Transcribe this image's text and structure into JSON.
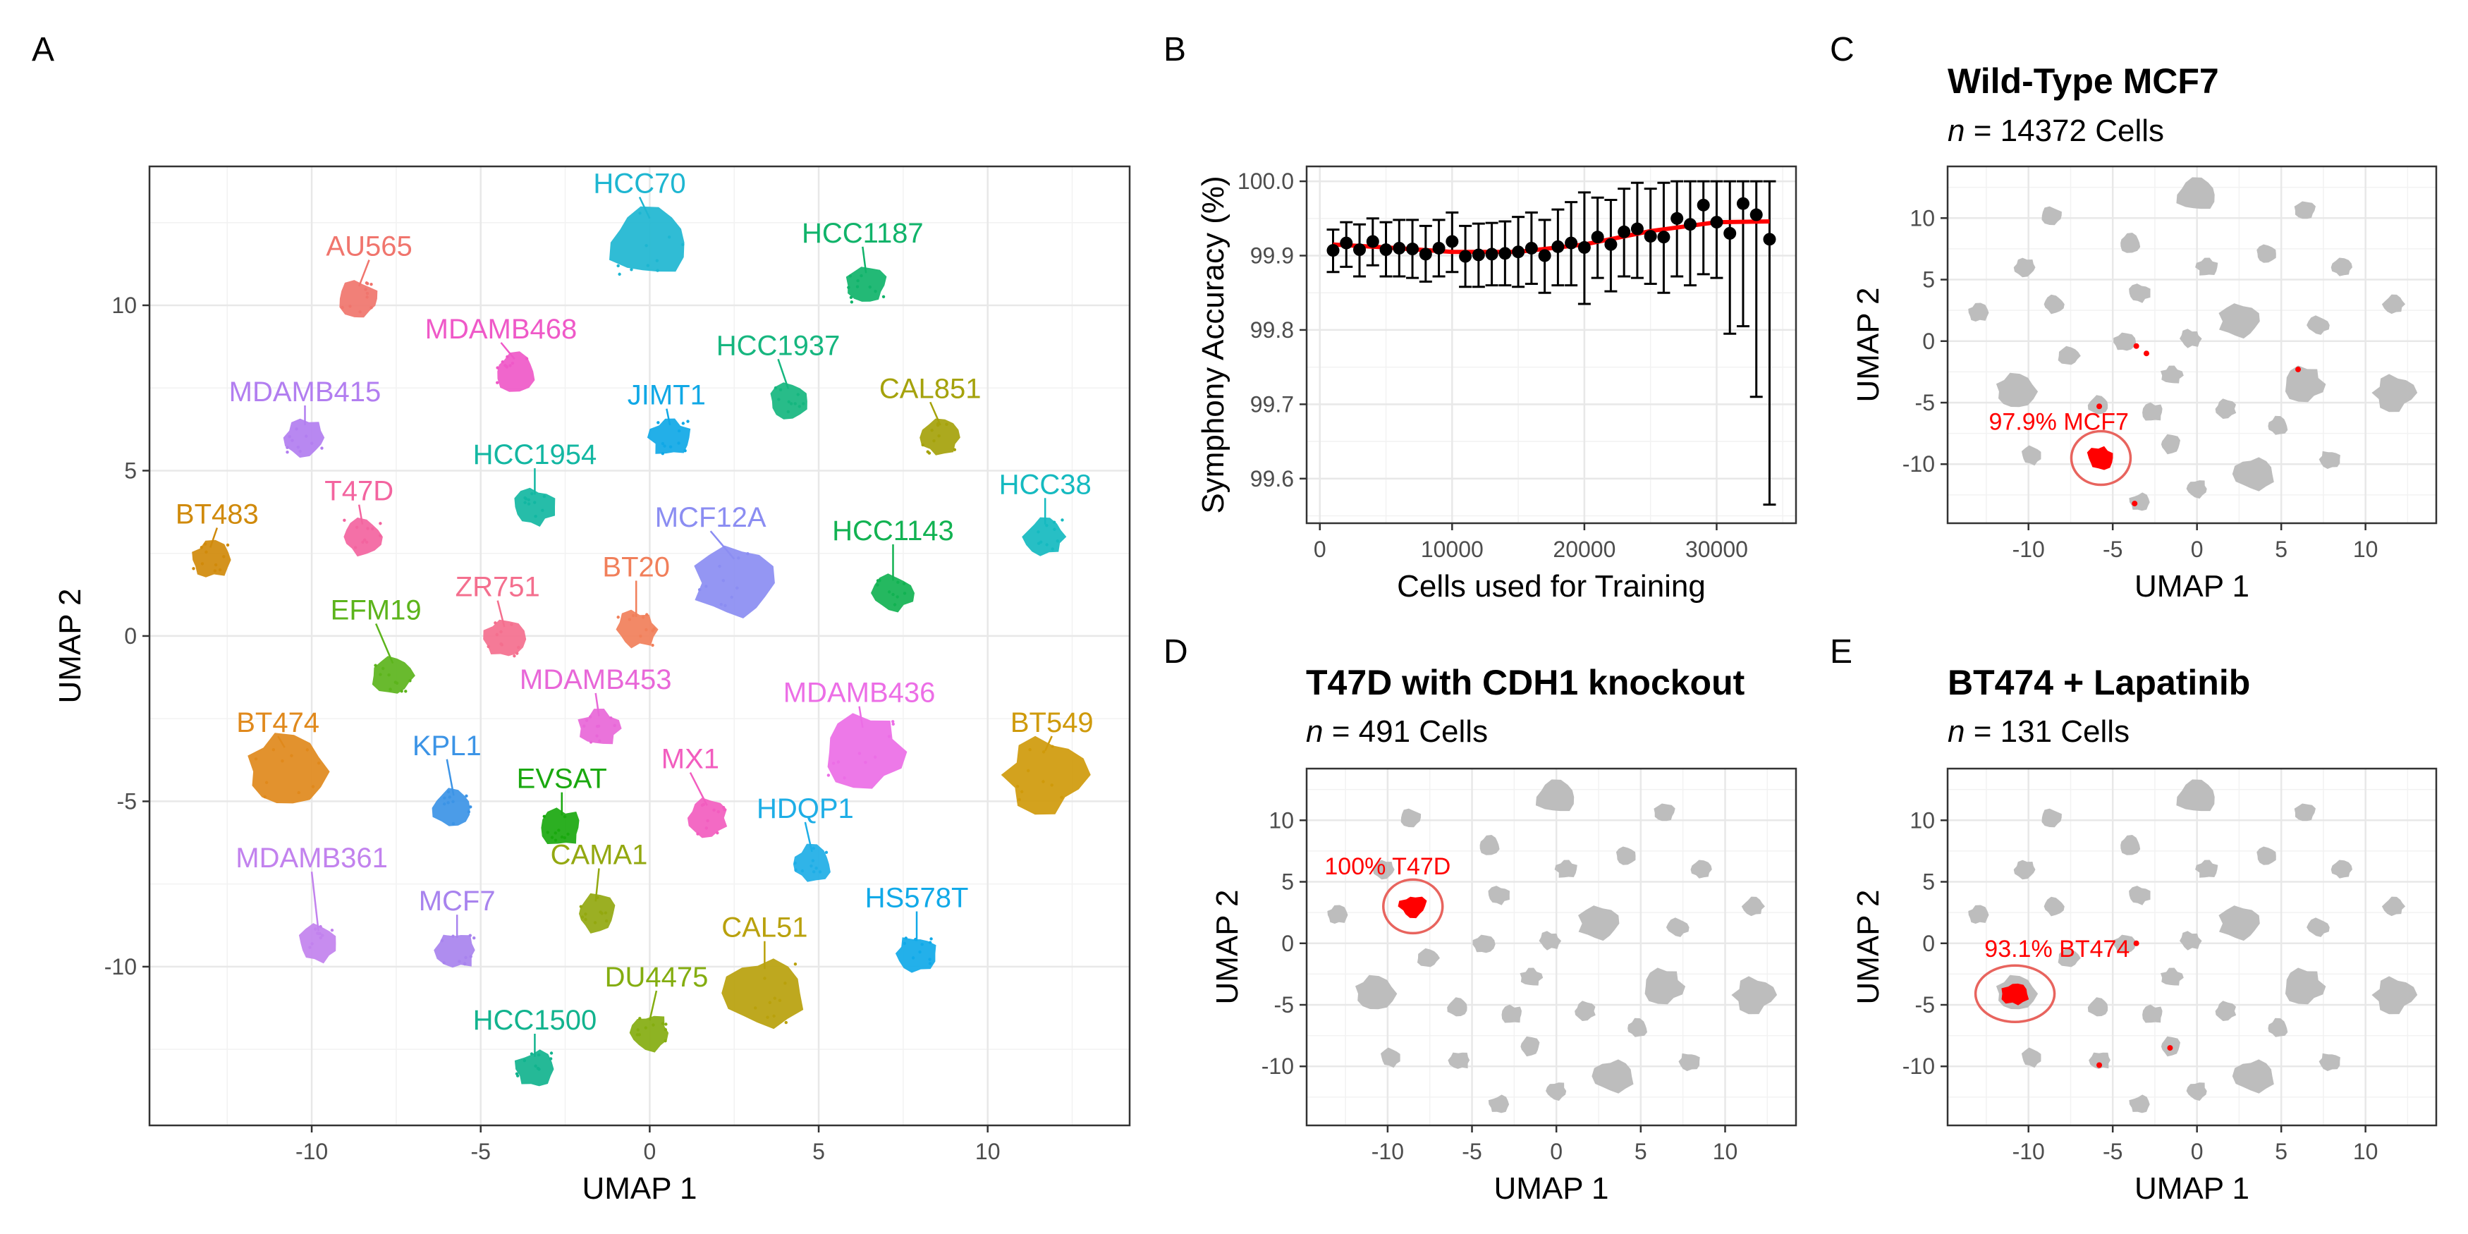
{
  "panel_letters": {
    "a": "A",
    "b": "B",
    "c": "C",
    "d": "D",
    "e": "E"
  },
  "colors": {
    "grid": "#e8e8e8",
    "frame": "#333333",
    "tick_text": "#4d4d4d",
    "highlight": "#ff0000",
    "ring": "#e8645e",
    "gray_cluster": "#bdbdbd",
    "trend": "#ff0000",
    "points": "#000000"
  },
  "chart_data": [
    {
      "id": "A",
      "type": "scatter",
      "title": "",
      "xlabel": "UMAP 1",
      "ylabel": "UMAP 2",
      "xlim": [
        -14.8,
        14.2
      ],
      "ylim": [
        -14.8,
        14.2
      ],
      "xticks": [
        -10,
        -5,
        0,
        5,
        10
      ],
      "xtick_labels": [
        "-10",
        "-5",
        "0",
        "5",
        "10"
      ],
      "yticks": [
        -10,
        -5,
        0,
        5,
        10
      ],
      "ytick_labels": [
        "-10",
        "-5",
        "0",
        "5",
        "10"
      ],
      "grid": true,
      "clusters": [
        {
          "name": "HCC70",
          "x": 0.0,
          "y": 11.9,
          "color": "#1eb6d1",
          "label_x": -0.3,
          "label_y": 13.4
        },
        {
          "name": "AU565",
          "x": -8.6,
          "y": 10.2,
          "color": "#f0756d",
          "label_x": -8.3,
          "label_y": 11.5
        },
        {
          "name": "HCC1187",
          "x": 6.4,
          "y": 10.6,
          "color": "#10b36a",
          "label_x": 6.3,
          "label_y": 11.9
        },
        {
          "name": "MDAMB468",
          "x": -4.0,
          "y": 8.0,
          "color": "#ef59c8",
          "label_x": -4.4,
          "label_y": 9.0
        },
        {
          "name": "HCC1937",
          "x": 4.1,
          "y": 7.1,
          "color": "#16b67f",
          "label_x": 3.8,
          "label_y": 8.5
        },
        {
          "name": "JIMT1",
          "x": 0.6,
          "y": 6.0,
          "color": "#10a8e6",
          "label_x": 0.5,
          "label_y": 7.0
        },
        {
          "name": "MDAMB415",
          "x": -10.2,
          "y": 6.0,
          "color": "#b27ef0",
          "label_x": -10.2,
          "label_y": 7.1
        },
        {
          "name": "CAL851",
          "x": 8.6,
          "y": 6.0,
          "color": "#a5a20b",
          "label_x": 8.3,
          "label_y": 7.2
        },
        {
          "name": "HCC1954",
          "x": -3.4,
          "y": 3.9,
          "color": "#13b7a2",
          "label_x": -3.4,
          "label_y": 5.2
        },
        {
          "name": "T47D",
          "x": -8.5,
          "y": 3.0,
          "color": "#f3649f",
          "label_x": -8.6,
          "label_y": 4.1
        },
        {
          "name": "BT483",
          "x": -13.0,
          "y": 2.3,
          "color": "#d08a0b",
          "label_x": -12.8,
          "label_y": 3.4
        },
        {
          "name": "MCF12A",
          "x": 2.5,
          "y": 1.6,
          "color": "#8b8df2",
          "label_x": 1.8,
          "label_y": 3.3
        },
        {
          "name": "HCC38",
          "x": 11.7,
          "y": 3.0,
          "color": "#15bac0",
          "label_x": 11.7,
          "label_y": 4.3
        },
        {
          "name": "HCC1143",
          "x": 7.2,
          "y": 1.3,
          "color": "#12b252",
          "label_x": 7.2,
          "label_y": 2.9
        },
        {
          "name": "ZR751",
          "x": -4.3,
          "y": -0.1,
          "color": "#f46f8e",
          "label_x": -4.5,
          "label_y": 1.2
        },
        {
          "name": "BT20",
          "x": -0.4,
          "y": 0.2,
          "color": "#f17f5a",
          "label_x": -0.4,
          "label_y": 1.8
        },
        {
          "name": "EFM19",
          "x": -7.6,
          "y": -1.2,
          "color": "#5cb41c",
          "label_x": -8.1,
          "label_y": 0.5
        },
        {
          "name": "MDAMB453",
          "x": -1.5,
          "y": -2.8,
          "color": "#e867d8",
          "label_x": -1.6,
          "label_y": -1.6
        },
        {
          "name": "MDAMB436",
          "x": 6.3,
          "y": -3.5,
          "color": "#ec6ee6",
          "label_x": 6.2,
          "label_y": -2.0
        },
        {
          "name": "BT474",
          "x": -10.8,
          "y": -4.1,
          "color": "#e0891c",
          "label_x": -11.0,
          "label_y": -2.9
        },
        {
          "name": "BT549",
          "x": 11.7,
          "y": -4.2,
          "color": "#cf9a0b",
          "label_x": 11.9,
          "label_y": -2.9
        },
        {
          "name": "KPL1",
          "x": -5.8,
          "y": -5.2,
          "color": "#3c94e6",
          "label_x": -6.0,
          "label_y": -3.6
        },
        {
          "name": "EVSAT",
          "x": -2.6,
          "y": -5.8,
          "color": "#1aa80f",
          "label_x": -2.6,
          "label_y": -4.6
        },
        {
          "name": "MX1",
          "x": 1.7,
          "y": -5.5,
          "color": "#f25dbf",
          "label_x": 1.2,
          "label_y": -4.0
        },
        {
          "name": "HDQP1",
          "x": 4.8,
          "y": -6.9,
          "color": "#1eaee6",
          "label_x": 4.6,
          "label_y": -5.5
        },
        {
          "name": "MDAMB361",
          "x": -9.8,
          "y": -9.3,
          "color": "#c282ee",
          "label_x": -10.0,
          "label_y": -7.0
        },
        {
          "name": "CAMA1",
          "x": -1.6,
          "y": -8.4,
          "color": "#93a810",
          "label_x": -1.5,
          "label_y": -6.9
        },
        {
          "name": "MCF7",
          "x": -5.7,
          "y": -9.5,
          "color": "#a883ee",
          "label_x": -5.7,
          "label_y": -8.3
        },
        {
          "name": "CAL51",
          "x": 3.4,
          "y": -10.8,
          "color": "#b9a10c",
          "label_x": 3.4,
          "label_y": -9.1
        },
        {
          "name": "HS578T",
          "x": 7.9,
          "y": -9.6,
          "color": "#10a9e8",
          "label_x": 7.9,
          "label_y": -8.2
        },
        {
          "name": "DU4475",
          "x": 0.0,
          "y": -12.0,
          "color": "#84ad10",
          "label_x": 0.2,
          "label_y": -10.6
        },
        {
          "name": "HCC1500",
          "x": -3.4,
          "y": -13.1,
          "color": "#12b38e",
          "label_x": -3.4,
          "label_y": -11.9
        }
      ]
    },
    {
      "id": "B",
      "type": "scatter",
      "title": "",
      "xlabel": "Cells used for Training",
      "ylabel": "Symphony Accuracy (%)",
      "xlim": [
        -1000,
        36000
      ],
      "ylim": [
        99.54,
        100.02
      ],
      "xticks": [
        0,
        10000,
        20000,
        30000
      ],
      "xtick_labels": [
        "0",
        "10000",
        "20000",
        "30000"
      ],
      "yticks": [
        99.6,
        99.7,
        99.8,
        99.9,
        100.0
      ],
      "ytick_labels": [
        "99.6",
        "99.7",
        "99.8",
        "99.9",
        "100.0"
      ],
      "grid": true,
      "x": [
        1000,
        2000,
        3000,
        4000,
        5000,
        6000,
        7000,
        8000,
        9000,
        10000,
        11000,
        12000,
        13000,
        14000,
        15000,
        16000,
        17000,
        18000,
        19000,
        20000,
        21000,
        22000,
        23000,
        24000,
        25000,
        26000,
        27000,
        28000,
        29000,
        30000,
        31000,
        32000,
        33000,
        34000
      ],
      "y": [
        99.907,
        99.917,
        99.908,
        99.919,
        99.908,
        99.91,
        99.909,
        99.902,
        99.91,
        99.919,
        99.899,
        99.901,
        99.902,
        99.903,
        99.905,
        99.91,
        99.9,
        99.912,
        99.917,
        99.911,
        99.925,
        99.915,
        99.932,
        99.936,
        99.926,
        99.925,
        99.95,
        99.942,
        99.968,
        99.945,
        99.93,
        99.97,
        99.955,
        99.922
      ],
      "err_low": [
        99.878,
        99.885,
        99.872,
        99.887,
        99.872,
        99.872,
        99.87,
        99.865,
        99.872,
        99.878,
        99.858,
        99.858,
        99.86,
        99.86,
        99.858,
        99.862,
        99.85,
        99.86,
        99.86,
        99.835,
        99.87,
        99.852,
        99.872,
        99.87,
        99.862,
        99.85,
        99.872,
        99.86,
        99.875,
        99.87,
        99.795,
        99.805,
        99.71,
        99.565
      ],
      "err_high": [
        99.935,
        99.945,
        99.942,
        99.95,
        99.945,
        99.948,
        99.948,
        99.94,
        99.948,
        99.958,
        99.94,
        99.943,
        99.944,
        99.946,
        99.952,
        99.958,
        99.948,
        99.962,
        99.972,
        99.985,
        99.978,
        99.975,
        99.99,
        99.998,
        99.99,
        99.998,
        100.0,
        100.0,
        100.0,
        100.0,
        100.0,
        100.0,
        100.0,
        100.0
      ],
      "trend": [
        [
          1000,
          99.915
        ],
        [
          5000,
          99.911
        ],
        [
          10000,
          99.905
        ],
        [
          15000,
          99.905
        ],
        [
          20000,
          99.915
        ],
        [
          25000,
          99.933
        ],
        [
          30000,
          99.945
        ],
        [
          34000,
          99.946
        ]
      ]
    },
    {
      "id": "C",
      "type": "scatter",
      "title": "Wild-Type MCF7",
      "subtitle_italic": "n",
      "subtitle_rest": "= 14372 Cells",
      "xlabel": "UMAP 1",
      "ylabel": "UMAP 2",
      "xlim": [
        -14.8,
        14.2
      ],
      "ylim": [
        -14.8,
        14.2
      ],
      "xticks": [
        -10,
        -5,
        0,
        5,
        10
      ],
      "xtick_labels": [
        "-10",
        "-5",
        "0",
        "5",
        "10"
      ],
      "yticks": [
        -10,
        -5,
        0,
        5,
        10
      ],
      "ytick_labels": [
        "-10",
        "-5",
        "0",
        "5",
        "10"
      ],
      "grid": true,
      "highlight": {
        "label": "97.9% MCF7",
        "x": -5.7,
        "y": -9.5,
        "label_x": -8.2,
        "label_y": -7.2
      },
      "minor_red": [
        [
          -5.8,
          -5.3
        ],
        [
          -3.6,
          -0.4
        ],
        [
          -3.0,
          -1.0
        ],
        [
          6.0,
          -2.3
        ],
        [
          -3.7,
          -13.2
        ]
      ]
    },
    {
      "id": "D",
      "type": "scatter",
      "title": "T47D with CDH1 knockout",
      "subtitle_italic": "n",
      "subtitle_rest": "= 491 Cells",
      "xlabel": "UMAP 1",
      "ylabel": "UMAP 2",
      "xlim": [
        -14.8,
        14.2
      ],
      "ylim": [
        -14.8,
        14.2
      ],
      "xticks": [
        -10,
        -5,
        0,
        5,
        10
      ],
      "xtick_labels": [
        "-10",
        "-5",
        "0",
        "5",
        "10"
      ],
      "yticks": [
        -10,
        -5,
        0,
        5,
        10
      ],
      "ytick_labels": [
        "-10",
        "-5",
        "0",
        "5",
        "10"
      ],
      "grid": true,
      "highlight": {
        "label": "100% T47D",
        "x": -8.5,
        "y": 3.0,
        "label_x": -10.0,
        "label_y": 5.6
      },
      "minor_red": []
    },
    {
      "id": "E",
      "type": "scatter",
      "title": "BT474 + Lapatinib",
      "subtitle_italic": "n",
      "subtitle_rest": "= 131 Cells",
      "xlabel": "UMAP 1",
      "ylabel": "UMAP 2",
      "xlim": [
        -14.8,
        14.2
      ],
      "ylim": [
        -14.8,
        14.2
      ],
      "xticks": [
        -10,
        -5,
        0,
        5,
        10
      ],
      "xtick_labels": [
        "-10",
        "-5",
        "0",
        "5",
        "10"
      ],
      "yticks": [
        -10,
        -5,
        0,
        5,
        10
      ],
      "ytick_labels": [
        "-10",
        "-5",
        "0",
        "5",
        "10"
      ],
      "grid": true,
      "highlight": {
        "label": "93.1% BT474",
        "x": -10.8,
        "y": -4.1,
        "label_x": -8.3,
        "label_y": -1.1
      },
      "minor_red": [
        [
          -3.6,
          0.0
        ],
        [
          -1.6,
          -8.5
        ],
        [
          -5.8,
          -9.9
        ]
      ]
    }
  ]
}
